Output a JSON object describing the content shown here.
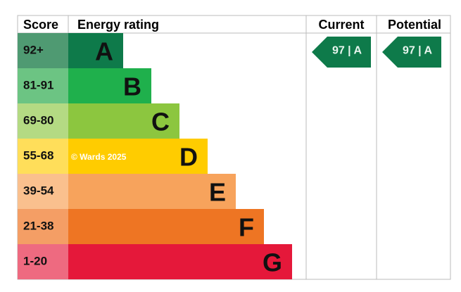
{
  "header": {
    "score": "Score",
    "rating": "Energy rating",
    "current": "Current",
    "potential": "Potential"
  },
  "bands": [
    {
      "score": "92+",
      "letter": "A"
    },
    {
      "score": "81-91",
      "letter": "B"
    },
    {
      "score": "69-80",
      "letter": "C"
    },
    {
      "score": "55-68",
      "letter": "D"
    },
    {
      "score": "39-54",
      "letter": "E"
    },
    {
      "score": "21-38",
      "letter": "F"
    },
    {
      "score": "1-20",
      "letter": "G"
    }
  ],
  "current": "97 | A",
  "potential": "97 | A",
  "watermark": "© Wards 2025"
}
